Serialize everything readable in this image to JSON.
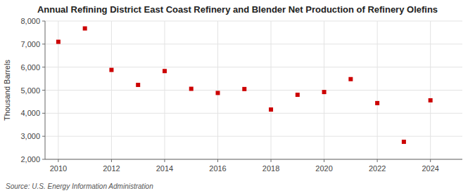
{
  "chart_data": {
    "type": "scatter",
    "title": "Annual Refining District East Coast Refinery and Blender Net Production of Refinery Olefins",
    "ylabel": "Thousand Barrels",
    "annotations": [
      "Source: U.S. Energy Information Administration"
    ],
    "x": [
      2010,
      2011,
      2012,
      2013,
      2014,
      2015,
      2016,
      2017,
      2018,
      2019,
      2020,
      2021,
      2022,
      2023,
      2024
    ],
    "values": [
      7100,
      7680,
      5880,
      5230,
      5830,
      5060,
      4880,
      5050,
      4160,
      4800,
      4920,
      5480,
      4440,
      2760,
      4560
    ],
    "color": "#cc0000",
    "marker": "square",
    "xlim": [
      2009.5,
      2025.2
    ],
    "xticks": [
      2010,
      2012,
      2014,
      2016,
      2018,
      2020,
      2022,
      2024
    ],
    "ylim": [
      2000,
      8000
    ],
    "yticks": [
      {
        "value": 2000,
        "label": "2,000"
      },
      {
        "value": 3000,
        "label": "3,000"
      },
      {
        "value": 4000,
        "label": "4,000"
      },
      {
        "value": 5000,
        "label": "5,000"
      },
      {
        "value": 6000,
        "label": "6,000"
      },
      {
        "value": 7000,
        "label": "7,000"
      },
      {
        "value": 8000,
        "label": "8,000"
      }
    ],
    "grid": true
  }
}
